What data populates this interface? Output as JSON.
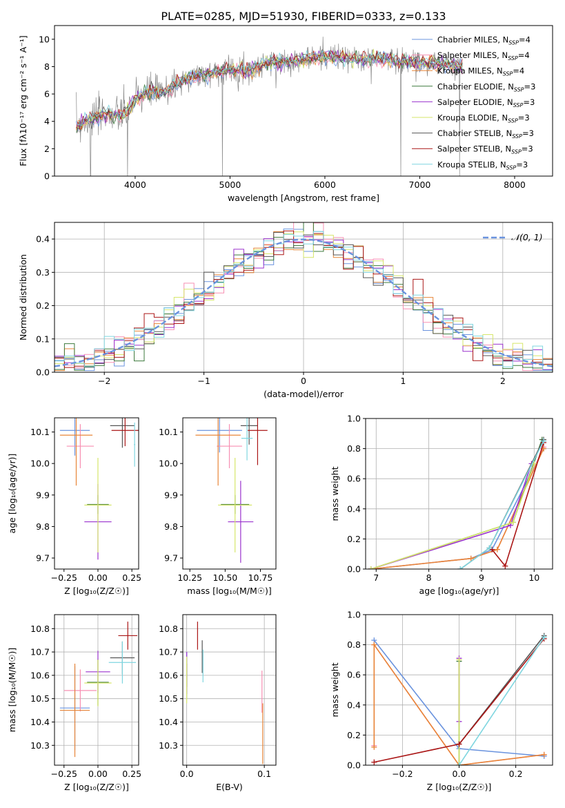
{
  "figure": {
    "title": "PLATE=0285, MJD=51930, FIBERID=0333, z=0.133"
  },
  "colors": {
    "Chabrier MILES": "#6a93de",
    "Salpeter MILES": "#f78fb2",
    "Kroupa MILES": "#e88537",
    "Chabrier ELODIE": "#3d7a3d",
    "Salpeter ELODIE": "#9a32cd",
    "Kroupa ELODIE": "#d6e66a",
    "Chabrier STELIB": "#555555",
    "Salpeter STELIB": "#aa1515",
    "Kroupa STELIB": "#7fd6e0",
    "data": "#888888",
    "normal": "#6a93de"
  },
  "chart_data": [
    {
      "id": "spectrum",
      "type": "line",
      "xlabel": "wavelength [Angstrom, rest frame]",
      "ylabel": "Flux [fλ10⁻¹⁷ erg cm⁻² s⁻¹ A⁻¹]",
      "xlim": [
        3150,
        8400
      ],
      "ylim": [
        0,
        11
      ],
      "xticks": [
        "4000",
        "5000",
        "6000",
        "7000",
        "8000"
      ],
      "yticks": [
        "0",
        "2",
        "4",
        "6",
        "8",
        "10"
      ],
      "legend": [
        {
          "name": "Chabrier MILES",
          "nssp": "N_SSP=4"
        },
        {
          "name": "Salpeter MILES",
          "nssp": "N_SSP=4"
        },
        {
          "name": "Kroupa MILES",
          "nssp": "N_SSP=4"
        },
        {
          "name": "Chabrier ELODIE",
          "nssp": "N_SSP=3"
        },
        {
          "name": "Salpeter ELODIE",
          "nssp": "N_SSP=3"
        },
        {
          "name": "Kroupa ELODIE",
          "nssp": "N_SSP=3"
        },
        {
          "name": "Chabrier STELIB",
          "nssp": "N_SSP=3"
        },
        {
          "name": "Salpeter STELIB",
          "nssp": "N_SSP=3"
        },
        {
          "name": "Kroupa STELIB",
          "nssp": "N_SSP=3"
        }
      ],
      "continuum": [
        [
          3380,
          3.6
        ],
        [
          3500,
          4.1
        ],
        [
          3600,
          4.3
        ],
        [
          3700,
          4.6
        ],
        [
          3800,
          4.4
        ],
        [
          3900,
          4.6
        ],
        [
          4000,
          5.6
        ],
        [
          4100,
          6.0
        ],
        [
          4200,
          6.2
        ],
        [
          4300,
          6.0
        ],
        [
          4400,
          6.6
        ],
        [
          4500,
          7.0
        ],
        [
          4600,
          7.2
        ],
        [
          4800,
          7.5
        ],
        [
          5000,
          7.8
        ],
        [
          5200,
          7.7
        ],
        [
          5400,
          8.3
        ],
        [
          5600,
          8.4
        ],
        [
          5800,
          8.5
        ],
        [
          6000,
          8.8
        ],
        [
          6200,
          8.6
        ],
        [
          6400,
          8.5
        ],
        [
          6600,
          8.6
        ],
        [
          6800,
          8.4
        ],
        [
          7000,
          8.3
        ],
        [
          7200,
          8.2
        ],
        [
          7450,
          8.0
        ]
      ]
    },
    {
      "id": "residuals",
      "type": "line",
      "xlabel": "(data-model)/error",
      "ylabel": "Normed distribution",
      "xlim": [
        -2.5,
        2.5
      ],
      "ylim": [
        0,
        0.45
      ],
      "xticks": [
        "−2",
        "−1",
        "0",
        "1",
        "2"
      ],
      "yticks": [
        "0.0",
        "0.1",
        "0.2",
        "0.3",
        "0.4"
      ],
      "legend": [
        "𝒩(0, 1)"
      ],
      "bin_width": 0.1,
      "reference": "normal(0,1)"
    },
    {
      "id": "age-vs-Z",
      "type": "scatter",
      "xlabel": "Z [log₁₀(Z/Z☉)]",
      "ylabel": "age  [log₁₀(age/yr)]",
      "xlim": [
        -0.32,
        0.3
      ],
      "ylim": [
        9.665,
        10.145
      ],
      "xticks": [
        "−0.25",
        "0.00",
        "0.25"
      ],
      "yticks": [
        "9.7",
        "9.8",
        "9.9",
        "10.0",
        "10.1"
      ],
      "points": [
        {
          "series": "Chabrier MILES",
          "x": -0.17,
          "xerr": 0.11,
          "y": 10.105,
          "yerr": 0.08
        },
        {
          "series": "Salpeter MILES",
          "x": -0.13,
          "xerr": 0.1,
          "y": 10.055,
          "yerr": 0.07
        },
        {
          "series": "Kroupa MILES",
          "x": -0.16,
          "xerr": 0.12,
          "y": 10.09,
          "yerr": 0.16
        },
        {
          "series": "Chabrier ELODIE",
          "x": 0.0,
          "xerr": 0.08,
          "y": 9.87,
          "yerr": 0.03
        },
        {
          "series": "Salpeter ELODIE",
          "x": 0.0,
          "xerr": 0.1,
          "y": 9.815,
          "yerr": 0.12
        },
        {
          "series": "Kroupa ELODIE",
          "x": 0.0,
          "xerr": 0.1,
          "y": 9.868,
          "yerr": 0.15
        },
        {
          "series": "Chabrier STELIB",
          "x": 0.18,
          "xerr": 0.09,
          "y": 10.12,
          "yerr": 0.07
        },
        {
          "series": "Salpeter STELIB",
          "x": 0.2,
          "xerr": 0.1,
          "y": 10.105,
          "yerr": 0.05
        },
        {
          "series": "Kroupa STELIB",
          "x": 0.27,
          "xerr": 0.005,
          "y": 10.06,
          "yerr": 0.07
        }
      ]
    },
    {
      "id": "age-vs-mass",
      "type": "scatter",
      "xlabel": "mass [log₁₀(M/M☉)]",
      "ylabel": "",
      "xlim": [
        10.2,
        10.86
      ],
      "ylim": [
        9.665,
        10.145
      ],
      "xticks": [
        "10.25",
        "10.50",
        "10.75"
      ],
      "yticks": [
        "9.7",
        "9.8",
        "9.9",
        "10.0",
        "10.1"
      ],
      "points": [
        {
          "series": "Chabrier MILES",
          "x": 10.46,
          "xerr": 0.16,
          "y": 10.105,
          "yerr": 0.07
        },
        {
          "series": "Salpeter MILES",
          "x": 10.53,
          "xerr": 0.09,
          "y": 10.055,
          "yerr": 0.07
        },
        {
          "series": "Kroupa MILES",
          "x": 10.45,
          "xerr": 0.16,
          "y": 10.09,
          "yerr": 0.16
        },
        {
          "series": "Chabrier ELODIE",
          "x": 10.57,
          "xerr": 0.1,
          "y": 9.87,
          "yerr": 0.03
        },
        {
          "series": "Salpeter ELODIE",
          "x": 10.61,
          "xerr": 0.09,
          "y": 9.815,
          "yerr": 0.13
        },
        {
          "series": "Kroupa ELODIE",
          "x": 10.57,
          "xerr": 0.12,
          "y": 9.868,
          "yerr": 0.15
        },
        {
          "series": "Chabrier STELIB",
          "x": 10.67,
          "xerr": 0.06,
          "y": 10.12,
          "yerr": 0.06
        },
        {
          "series": "Salpeter STELIB",
          "x": 10.73,
          "xerr": 0.07,
          "y": 10.105,
          "yerr": 0.11
        },
        {
          "series": "Kroupa STELIB",
          "x": 10.655,
          "xerr": 0.04,
          "y": 10.08,
          "yerr": 0.07
        }
      ]
    },
    {
      "id": "weight-vs-age",
      "type": "line",
      "xlabel": "age  [log₁₀(age/yr)]",
      "ylabel": "mass weight",
      "xlim": [
        6.8,
        10.35
      ],
      "ylim": [
        0,
        1
      ],
      "xticks": [
        "7",
        "8",
        "9",
        "10"
      ],
      "yticks": [
        "0.0",
        "0.2",
        "0.4",
        "0.6",
        "0.8",
        "1.0"
      ],
      "series": [
        {
          "name": "Chabrier MILES",
          "x": [
            6.9,
            8.8,
            9.2,
            10.18
          ],
          "y": [
            0.0,
            0.07,
            0.13,
            0.8
          ]
        },
        {
          "name": "Salpeter MILES",
          "x": [
            6.9,
            8.8,
            9.3,
            10.18
          ],
          "y": [
            0.0,
            0.07,
            0.13,
            0.81
          ]
        },
        {
          "name": "Kroupa MILES",
          "x": [
            6.9,
            8.8,
            9.3,
            10.18
          ],
          "y": [
            0.0,
            0.07,
            0.13,
            0.8
          ]
        },
        {
          "name": "Chabrier ELODIE",
          "x": [
            6.9,
            9.6,
            10.15
          ],
          "y": [
            0.0,
            0.31,
            0.86
          ]
        },
        {
          "name": "Salpeter ELODIE",
          "x": [
            6.9,
            9.55,
            9.95
          ],
          "y": [
            0.0,
            0.29,
            0.7
          ]
        },
        {
          "name": "Kroupa ELODIE",
          "x": [
            6.9,
            9.6,
            10.0
          ],
          "y": [
            0.0,
            0.31,
            0.7
          ]
        },
        {
          "name": "Chabrier STELIB",
          "x": [
            8.6,
            9.15,
            10.18
          ],
          "y": [
            0.0,
            0.14,
            0.86
          ]
        },
        {
          "name": "Salpeter STELIB",
          "x": [
            9.2,
            9.45,
            10.18
          ],
          "y": [
            0.13,
            0.02,
            0.84
          ]
        },
        {
          "name": "Kroupa STELIB",
          "x": [
            8.6,
            9.15,
            10.18
          ],
          "y": [
            0.0,
            0.14,
            0.85
          ]
        }
      ]
    },
    {
      "id": "mass-vs-Z",
      "type": "scatter",
      "xlabel": "Z [log₁₀(Z/Z☉)]",
      "ylabel": "mass [log₁₀(M/M☉)]",
      "xlim": [
        -0.32,
        0.3
      ],
      "ylim": [
        10.215,
        10.86
      ],
      "xticks": [
        "−0.25",
        "0.00",
        "0.25"
      ],
      "yticks": [
        "10.3",
        "10.4",
        "10.5",
        "10.6",
        "10.7",
        "10.8"
      ],
      "points": [
        {
          "series": "Chabrier MILES",
          "x": -0.17,
          "xerr": 0.11,
          "y": 10.46,
          "yerr": 0.18
        },
        {
          "series": "Salpeter MILES",
          "x": -0.13,
          "xerr": 0.12,
          "y": 10.535,
          "yerr": 0.09
        },
        {
          "series": "Kroupa MILES",
          "x": -0.17,
          "xerr": 0.11,
          "y": 10.45,
          "yerr": 0.2
        },
        {
          "series": "Chabrier ELODIE",
          "x": 0.0,
          "xerr": 0.08,
          "y": 10.57,
          "yerr": 0.1
        },
        {
          "series": "Salpeter ELODIE",
          "x": 0.0,
          "xerr": 0.09,
          "y": 10.615,
          "yerr": 0.09
        },
        {
          "series": "Kroupa ELODIE",
          "x": 0.0,
          "xerr": 0.1,
          "y": 10.567,
          "yerr": 0.1
        },
        {
          "series": "Chabrier STELIB",
          "x": 0.18,
          "xerr": 0.09,
          "y": 10.675,
          "yerr": 0.07
        },
        {
          "series": "Salpeter STELIB",
          "x": 0.22,
          "xerr": 0.07,
          "y": 10.77,
          "yerr": 0.06
        },
        {
          "series": "Kroupa STELIB",
          "x": 0.18,
          "xerr": 0.1,
          "y": 10.655,
          "yerr": 0.09
        }
      ]
    },
    {
      "id": "mass-vs-EBV",
      "type": "scatter",
      "xlabel": "E(B-V)",
      "ylabel": "",
      "xlim": [
        -0.005,
        0.115
      ],
      "ylim": [
        10.215,
        10.86
      ],
      "xticks": [
        "0.0",
        "0.1"
      ],
      "yticks": [
        "10.3",
        "10.4",
        "10.5",
        "10.6",
        "10.7",
        "10.8"
      ],
      "points": [
        {
          "series": "Chabrier MILES",
          "x": 0.0,
          "y": 10.6,
          "yerr": 0.1
        },
        {
          "series": "Salpeter MILES",
          "x": 0.097,
          "y": 10.53,
          "yerr": 0.09
        },
        {
          "series": "Kroupa MILES",
          "x": 0.098,
          "y": 10.35,
          "yerr": 0.13
        },
        {
          "series": "Chabrier ELODIE",
          "x": 0.0,
          "y": 10.6,
          "yerr": 0.05
        },
        {
          "series": "Salpeter ELODIE",
          "x": 0.0,
          "y": 10.61,
          "yerr": 0.09
        },
        {
          "series": "Kroupa ELODIE",
          "x": 0.0,
          "y": 10.58,
          "yerr": 0.1
        },
        {
          "series": "Chabrier STELIB",
          "x": 0.02,
          "y": 10.68,
          "yerr": 0.07
        },
        {
          "series": "Salpeter STELIB",
          "x": 0.014,
          "y": 10.77,
          "yerr": 0.06
        },
        {
          "series": "Kroupa STELIB",
          "x": 0.021,
          "y": 10.64,
          "yerr": 0.07
        }
      ]
    },
    {
      "id": "weight-vs-Z",
      "type": "line",
      "xlabel": "Z [log₁₀(Z/Z☉)]",
      "ylabel": "mass weight",
      "xlim": [
        -0.33,
        0.33
      ],
      "ylim": [
        0,
        1
      ],
      "xticks": [
        "−0.2",
        "0.0",
        "0.2"
      ],
      "yticks": [
        "0.0",
        "0.2",
        "0.4",
        "0.6",
        "0.8",
        "1.0"
      ],
      "series": [
        {
          "name": "Chabrier MILES",
          "x": [
            -0.3,
            0.0,
            0.3
          ],
          "y": [
            0.83,
            0.11,
            0.06
          ]
        },
        {
          "name": "Salpeter MILES",
          "x": [
            -0.3,
            -0.3,
            0.0,
            0.3
          ],
          "y": [
            0.13,
            0.8,
            0.0,
            0.07
          ]
        },
        {
          "name": "Kroupa MILES",
          "x": [
            -0.3,
            -0.3,
            0.0,
            0.3
          ],
          "y": [
            0.12,
            0.8,
            0.0,
            0.07
          ]
        },
        {
          "name": "Chabrier ELODIE",
          "x": [
            0.0,
            0.0
          ],
          "y": [
            0.0,
            0.69
          ]
        },
        {
          "name": "Salpeter ELODIE",
          "x": [
            0.0,
            0.0
          ],
          "y": [
            0.29,
            0.71
          ]
        },
        {
          "name": "Kroupa ELODIE",
          "x": [
            0.0,
            0.0
          ],
          "y": [
            0.0,
            0.7
          ]
        },
        {
          "name": "Chabrier STELIB",
          "x": [
            0.0,
            0.3
          ],
          "y": [
            0.14,
            0.86
          ]
        },
        {
          "name": "Salpeter STELIB",
          "x": [
            -0.3,
            0.0,
            0.3
          ],
          "y": [
            0.02,
            0.14,
            0.84
          ]
        },
        {
          "name": "Kroupa STELIB",
          "x": [
            0.0,
            0.3
          ],
          "y": [
            0.0,
            0.85
          ]
        }
      ]
    }
  ]
}
